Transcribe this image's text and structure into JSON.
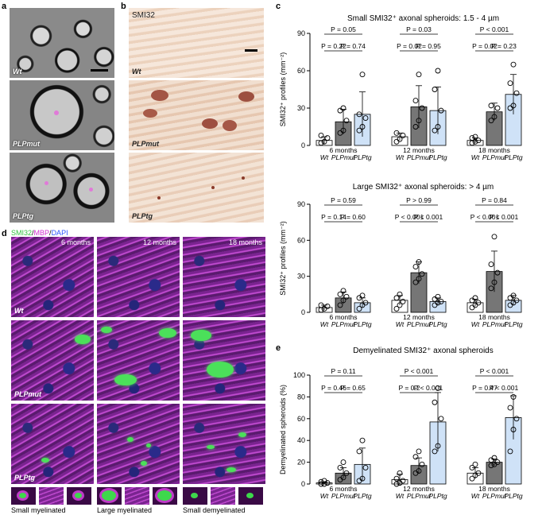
{
  "panel_labels": {
    "a": "a",
    "b": "b",
    "c": "c",
    "d": "d",
    "e": "e"
  },
  "panel_a": {
    "labels": [
      "Wt",
      "PLPmut",
      "PLPtg"
    ]
  },
  "panel_b": {
    "stain": "SMI32",
    "labels": [
      "Wt",
      "PLPmut",
      "PLPtg"
    ]
  },
  "panel_d": {
    "legend": {
      "smi32": "SMI32",
      "sep1": "/",
      "mbp": "MBP",
      "sep2": "/",
      "dapi": "DAPI"
    },
    "columns": [
      "6 months",
      "12 months",
      "18 months"
    ],
    "rows": [
      "Wt",
      "PLPmut",
      "PLPtg"
    ],
    "inset_captions": [
      "Small myelinated",
      "Large myelinated",
      "Small demyelinated"
    ]
  },
  "colors": {
    "wt": "#ffffff",
    "plpmut": "#767676",
    "plptg": "#cfe2f7",
    "smi32": "#3ddc4c",
    "mbp": "#e040e0",
    "dapi": "#3a5fff"
  },
  "chart_data": [
    {
      "type": "bar",
      "title": "Small SMI32⁺ axonal spheroids: 1.5 - 4 µm",
      "ylabel": "SMI32⁺ profiles (mm⁻²)",
      "ylim": [
        0,
        90
      ],
      "yticks": [
        0,
        30,
        60,
        90
      ],
      "groups": [
        "6 months",
        "12 months",
        "18 months"
      ],
      "series_labels": [
        "Wt",
        "PLPmut",
        "PLPtg"
      ],
      "values": [
        [
          4,
          19,
          25
        ],
        [
          7,
          31,
          28
        ],
        [
          4,
          27,
          41
        ]
      ],
      "errors": [
        [
          3,
          10,
          18
        ],
        [
          3,
          17,
          19
        ],
        [
          2,
          7,
          16
        ]
      ],
      "points": [
        [
          [
            2,
            3,
            6,
            8
          ],
          [
            10,
            12,
            20,
            28,
            30
          ],
          [
            12,
            15,
            22,
            25,
            57
          ]
        ],
        [
          [
            3,
            5,
            8,
            10
          ],
          [
            15,
            20,
            30,
            36,
            57
          ],
          [
            12,
            15,
            28,
            45,
            60
          ]
        ],
        [
          [
            2,
            3,
            4,
            6,
            7
          ],
          [
            20,
            23,
            30,
            32
          ],
          [
            30,
            32,
            42,
            50,
            65
          ]
        ]
      ],
      "comparisons": [
        {
          "g": 0,
          "a": 0,
          "b": 2,
          "label": "P = 0.05",
          "level": 2
        },
        {
          "g": 0,
          "a": 0,
          "b": 1,
          "label": "P = 0.22",
          "level": 1
        },
        {
          "g": 0,
          "a": 1,
          "b": 2,
          "label": "P = 0.74",
          "level": 1
        },
        {
          "g": 1,
          "a": 0,
          "b": 2,
          "label": "P = 0.03",
          "level": 2
        },
        {
          "g": 1,
          "a": 0,
          "b": 1,
          "label": "P = 0.02",
          "level": 1
        },
        {
          "g": 1,
          "a": 1,
          "b": 2,
          "label": "P = 0.95",
          "level": 1
        },
        {
          "g": 2,
          "a": 0,
          "b": 2,
          "label": "P < 0.001",
          "level": 2
        },
        {
          "g": 2,
          "a": 0,
          "b": 1,
          "label": "P = 0.02",
          "level": 1
        },
        {
          "g": 2,
          "a": 1,
          "b": 2,
          "label": "P = 0.23",
          "level": 1
        }
      ]
    },
    {
      "type": "bar",
      "title": "Large SMI32⁺ axonal spheroids: > 4 µm",
      "ylabel": "SMI32⁺ profiles (mm⁻²)",
      "ylim": [
        0,
        90
      ],
      "yticks": [
        0,
        30,
        60,
        90
      ],
      "groups": [
        "6 months",
        "12 months",
        "18 months"
      ],
      "series_labels": [
        "Wt",
        "PLPmut",
        "PLPtg"
      ],
      "values": [
        [
          4,
          12,
          8
        ],
        [
          10,
          33,
          9
        ],
        [
          8,
          34,
          10
        ]
      ],
      "errors": [
        [
          2,
          5,
          4
        ],
        [
          4,
          9,
          3
        ],
        [
          3,
          17,
          4
        ]
      ],
      "points": [
        [
          [
            2,
            3,
            5,
            6
          ],
          [
            6,
            10,
            13,
            15,
            18
          ],
          [
            3,
            6,
            8,
            12,
            14
          ]
        ],
        [
          [
            3,
            6,
            9,
            12,
            15
          ],
          [
            25,
            28,
            32,
            38,
            42
          ],
          [
            6,
            8,
            9,
            11,
            13
          ]
        ],
        [
          [
            4,
            6,
            8,
            10,
            12
          ],
          [
            20,
            25,
            33,
            40,
            63
          ],
          [
            6,
            8,
            10,
            12,
            14
          ]
        ]
      ],
      "comparisons": [
        {
          "g": 0,
          "a": 0,
          "b": 2,
          "label": "P = 0.59",
          "level": 2
        },
        {
          "g": 0,
          "a": 0,
          "b": 1,
          "label": "P = 0.14",
          "level": 1
        },
        {
          "g": 0,
          "a": 1,
          "b": 2,
          "label": "P = 0.60",
          "level": 1
        },
        {
          "g": 1,
          "a": 0,
          "b": 2,
          "label": "P > 0.99",
          "level": 2
        },
        {
          "g": 1,
          "a": 0,
          "b": 1,
          "label": "P < 0.001",
          "level": 1
        },
        {
          "g": 1,
          "a": 1,
          "b": 2,
          "label": "P < 0.001",
          "level": 1
        },
        {
          "g": 2,
          "a": 0,
          "b": 2,
          "label": "P = 0.84",
          "level": 2
        },
        {
          "g": 2,
          "a": 0,
          "b": 1,
          "label": "P < 0.001",
          "level": 1
        },
        {
          "g": 2,
          "a": 1,
          "b": 2,
          "label": "P < 0.001",
          "level": 1
        }
      ]
    },
    {
      "type": "bar",
      "title": "Demyelinated SMI32⁺ axonal spheroids",
      "ylabel": "Demyelinated spheroids (%)",
      "ylim": [
        0,
        100
      ],
      "yticks": [
        0,
        20,
        40,
        60,
        80,
        100
      ],
      "groups": [
        "6 months",
        "12 months",
        "18 months"
      ],
      "series_labels": [
        "Wt",
        "PLPmut",
        "PLPtg"
      ],
      "values": [
        [
          1,
          10,
          18
        ],
        [
          4,
          17,
          57
        ],
        [
          10,
          20,
          61
        ]
      ],
      "errors": [
        [
          1,
          5,
          15
        ],
        [
          5,
          7,
          27
        ],
        [
          5,
          3,
          20
        ]
      ],
      "points": [
        [
          [
            0,
            0,
            1,
            2,
            3
          ],
          [
            4,
            6,
            10,
            15,
            20
          ],
          [
            3,
            5,
            15,
            30,
            40
          ]
        ],
        [
          [
            0,
            1,
            3,
            5,
            10
          ],
          [
            10,
            12,
            18,
            25,
            30
          ],
          [
            30,
            35,
            60,
            75,
            88
          ]
        ],
        [
          [
            5,
            8,
            10,
            15,
            18
          ],
          [
            17,
            18,
            20,
            22,
            24
          ],
          [
            30,
            50,
            60,
            70,
            80
          ]
        ]
      ],
      "comparisons": [
        {
          "g": 0,
          "a": 0,
          "b": 2,
          "label": "P = 0.11",
          "level": 2
        },
        {
          "g": 0,
          "a": 0,
          "b": 1,
          "label": "P = 0.46",
          "level": 1
        },
        {
          "g": 0,
          "a": 1,
          "b": 2,
          "label": "P = 0.65",
          "level": 1
        },
        {
          "g": 1,
          "a": 0,
          "b": 2,
          "label": "P < 0.001",
          "level": 2
        },
        {
          "g": 1,
          "a": 0,
          "b": 1,
          "label": "P = 0.2",
          "level": 1
        },
        {
          "g": 1,
          "a": 1,
          "b": 2,
          "label": "P < 0.001",
          "level": 1
        },
        {
          "g": 2,
          "a": 0,
          "b": 2,
          "label": "P < 0.001",
          "level": 2
        },
        {
          "g": 2,
          "a": 0,
          "b": 1,
          "label": "P = 0.47",
          "level": 1
        },
        {
          "g": 2,
          "a": 1,
          "b": 2,
          "label": "P < 0.001",
          "level": 1
        }
      ]
    }
  ]
}
